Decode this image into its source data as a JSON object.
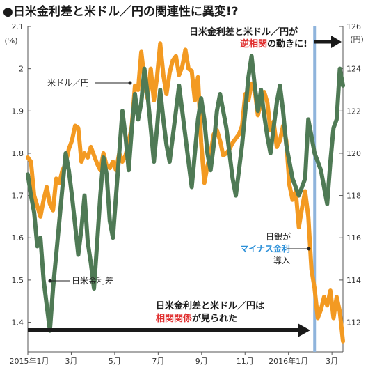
{
  "title": "●日米金利差と米ドル／円の関連性に異変!?",
  "chart_data": {
    "type": "line",
    "left_axis": {
      "unit": "(%)",
      "range": [
        1.33,
        2.1
      ],
      "ticks": [
        "2.1",
        "2",
        "1.9",
        "1.8",
        "1.7",
        "1.6",
        "1.5",
        "1.4"
      ]
    },
    "right_axis": {
      "unit": "(円)",
      "range": [
        110.6,
        126
      ],
      "ticks": [
        "126",
        "124",
        "122",
        "120",
        "118",
        "116",
        "114",
        "112"
      ]
    },
    "x_axis": {
      "ticks": [
        "2015年1月",
        "3月",
        "5月",
        "7月",
        "9月",
        "11月",
        "2016年1月",
        "3月"
      ]
    },
    "series": [
      {
        "name": "米ドル／円",
        "axis": "right",
        "color": "#f39a22",
        "x": [
          0,
          0.01,
          0.02,
          0.03,
          0.04,
          0.05,
          0.06,
          0.07,
          0.08,
          0.09,
          0.1,
          0.11,
          0.12,
          0.13,
          0.14,
          0.15,
          0.16,
          0.17,
          0.18,
          0.19,
          0.2,
          0.21,
          0.22,
          0.23,
          0.24,
          0.25,
          0.26,
          0.27,
          0.28,
          0.29,
          0.3,
          0.31,
          0.32,
          0.33,
          0.34,
          0.35,
          0.36,
          0.37,
          0.38,
          0.39,
          0.4,
          0.41,
          0.42,
          0.43,
          0.44,
          0.45,
          0.46,
          0.47,
          0.48,
          0.49,
          0.5,
          0.51,
          0.52,
          0.53,
          0.54,
          0.55,
          0.56,
          0.57,
          0.58,
          0.59,
          0.6,
          0.61,
          0.62,
          0.63,
          0.64,
          0.65,
          0.66,
          0.67,
          0.68,
          0.69,
          0.7,
          0.71,
          0.72,
          0.73,
          0.74,
          0.75,
          0.76,
          0.77,
          0.78,
          0.79,
          0.8,
          0.81,
          0.82,
          0.83,
          0.84,
          0.85,
          0.86,
          0.87,
          0.88,
          0.89,
          0.9,
          0.91,
          0.92,
          0.93,
          0.94,
          0.95,
          0.96,
          0.97,
          0.98,
          0.99,
          1
        ],
        "values": [
          119.8,
          119.6,
          118.0,
          117.5,
          117.0,
          117.8,
          118.4,
          117.6,
          117.3,
          118.8,
          118.6,
          119.2,
          119.5,
          120.2,
          120.6,
          121.3,
          121.2,
          119.6,
          120.0,
          119.8,
          120.3,
          119.9,
          119.5,
          119.2,
          120.0,
          119.4,
          119.3,
          119.6,
          119.2,
          120.0,
          119.6,
          119.9,
          120.5,
          121.3,
          123.2,
          123.0,
          124.8,
          123.5,
          122.6,
          124.0,
          122.5,
          123.6,
          125.2,
          123.7,
          122.8,
          123.8,
          124.4,
          124.6,
          123.7,
          124.1,
          124.9,
          124.0,
          123.9,
          122.5,
          123.6,
          120.5,
          118.6,
          119.4,
          120.0,
          120.9,
          121.1,
          120.6,
          119.9,
          120.0,
          120.2,
          120.5,
          120.7,
          120.9,
          121.3,
          122.8,
          122.5,
          123.3,
          123.0,
          121.8,
          122.4,
          122.9,
          122.4,
          121.1,
          121.5,
          120.3,
          120.6,
          121.3,
          120.6,
          118.5,
          117.8,
          118.2,
          116.5,
          117.4,
          118.2,
          117.0,
          114.5,
          113.6,
          112.2,
          112.6,
          113.2,
          112.8,
          113.5,
          112.2,
          113.2,
          112.5,
          111.1
        ]
      },
      {
        "name": "日米金利差",
        "axis": "left",
        "color": "#4f7a55",
        "x": [
          0,
          0.01,
          0.02,
          0.03,
          0.04,
          0.05,
          0.06,
          0.07,
          0.08,
          0.09,
          0.1,
          0.11,
          0.12,
          0.13,
          0.14,
          0.15,
          0.16,
          0.17,
          0.18,
          0.19,
          0.2,
          0.21,
          0.22,
          0.23,
          0.24,
          0.25,
          0.26,
          0.27,
          0.28,
          0.29,
          0.3,
          0.31,
          0.32,
          0.33,
          0.34,
          0.35,
          0.36,
          0.37,
          0.38,
          0.39,
          0.4,
          0.41,
          0.42,
          0.43,
          0.44,
          0.45,
          0.46,
          0.47,
          0.48,
          0.49,
          0.5,
          0.51,
          0.52,
          0.53,
          0.54,
          0.55,
          0.56,
          0.57,
          0.58,
          0.59,
          0.6,
          0.61,
          0.62,
          0.63,
          0.64,
          0.65,
          0.66,
          0.67,
          0.68,
          0.69,
          0.7,
          0.71,
          0.72,
          0.73,
          0.74,
          0.75,
          0.76,
          0.77,
          0.78,
          0.79,
          0.8,
          0.81,
          0.82,
          0.83,
          0.84,
          0.85,
          0.86,
          0.87,
          0.88,
          0.89,
          0.9,
          0.91,
          0.92,
          0.93,
          0.94,
          0.95,
          0.96,
          0.97,
          0.98,
          0.99,
          1
        ],
        "values": [
          1.75,
          1.7,
          1.66,
          1.58,
          1.6,
          1.5,
          1.44,
          1.38,
          1.48,
          1.56,
          1.64,
          1.72,
          1.8,
          1.76,
          1.7,
          1.63,
          1.56,
          1.62,
          1.7,
          1.59,
          1.54,
          1.48,
          1.59,
          1.7,
          1.79,
          1.75,
          1.64,
          1.6,
          1.7,
          1.8,
          1.9,
          1.84,
          1.76,
          1.86,
          1.94,
          1.88,
          1.92,
          2.0,
          1.94,
          1.86,
          1.78,
          1.86,
          1.95,
          1.88,
          1.82,
          1.78,
          1.84,
          1.9,
          1.96,
          1.9,
          1.84,
          1.78,
          1.72,
          1.8,
          1.88,
          1.93,
          1.88,
          1.8,
          1.76,
          1.82,
          1.9,
          1.94,
          1.9,
          1.86,
          1.8,
          1.74,
          1.7,
          1.76,
          1.82,
          1.9,
          1.98,
          2.03,
          1.96,
          1.9,
          1.95,
          1.89,
          1.84,
          1.8,
          1.86,
          1.92,
          1.96,
          1.9,
          1.82,
          1.78,
          1.74,
          1.72,
          1.7,
          1.72,
          1.74,
          1.88,
          1.84,
          1.8,
          1.78,
          1.76,
          1.72,
          1.68,
          1.78,
          1.86,
          1.88,
          2.0,
          1.96
        ]
      }
    ],
    "vline": {
      "x": 0.91,
      "color": "#8fb4dc"
    }
  },
  "annotations": {
    "usdjpy_label": "米ドル／円",
    "spread_label": "日米金利差",
    "top_line1": "日米金利差と米ドル／円が",
    "top_line2_red": "逆相関",
    "top_line2_rest": "の動きに!",
    "boj_line1": "日銀が",
    "boj_line2_blue": "マイナス金利",
    "boj_line3": "導入",
    "bottom_line1": "日米金利差と米ドル／円は",
    "bottom_line2_red": "相関関係",
    "bottom_line2_rest": "が見られた"
  }
}
